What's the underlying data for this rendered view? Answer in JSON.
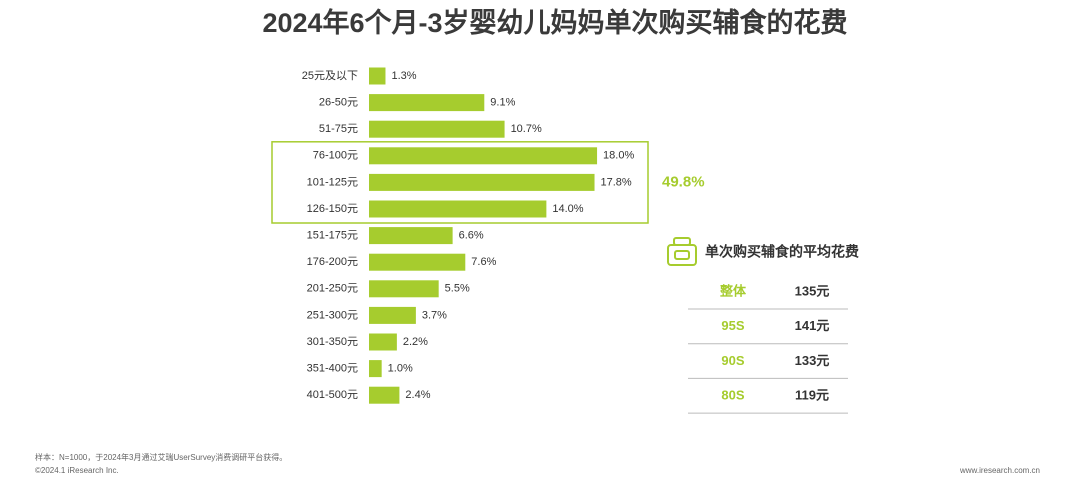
{
  "chart_data": {
    "type": "bar",
    "orientation": "horizontal",
    "title": "2024年6个月-3岁婴幼儿妈妈单次购买辅食的花费",
    "categories": [
      "25元及以下",
      "26-50元",
      "51-75元",
      "76-100元",
      "101-125元",
      "126-150元",
      "151-175元",
      "176-200元",
      "201-250元",
      "251-300元",
      "301-350元",
      "351-400元",
      "401-500元"
    ],
    "values": [
      1.3,
      9.1,
      10.7,
      18.0,
      17.8,
      14.0,
      6.6,
      7.6,
      5.5,
      3.7,
      2.2,
      1.0,
      2.4
    ],
    "value_labels": [
      "1.3%",
      "9.1%",
      "10.7%",
      "18.0%",
      "17.8%",
      "14.0%",
      "6.6%",
      "7.6%",
      "5.5%",
      "3.7%",
      "2.2%",
      "1.0%",
      "2.4%"
    ],
    "color": "#a6cc2e",
    "highlight": {
      "from": 3,
      "to": 5,
      "label": "49.8%",
      "color": "#a6cc2e"
    }
  },
  "avg_table": {
    "title": "单次购买辅食的平均花费",
    "rows": [
      [
        "整体",
        "135元"
      ],
      [
        "95S",
        "141元"
      ],
      [
        "90S",
        "133元"
      ],
      [
        "80S",
        "119元"
      ]
    ]
  },
  "footer": {
    "note": "样本：N=1000，于2024年3月通过艾瑞UserSurvey消费调研平台获得。",
    "copyright": "©2024.1 iResearch Inc.",
    "site": "www.iresearch.com.cn"
  }
}
